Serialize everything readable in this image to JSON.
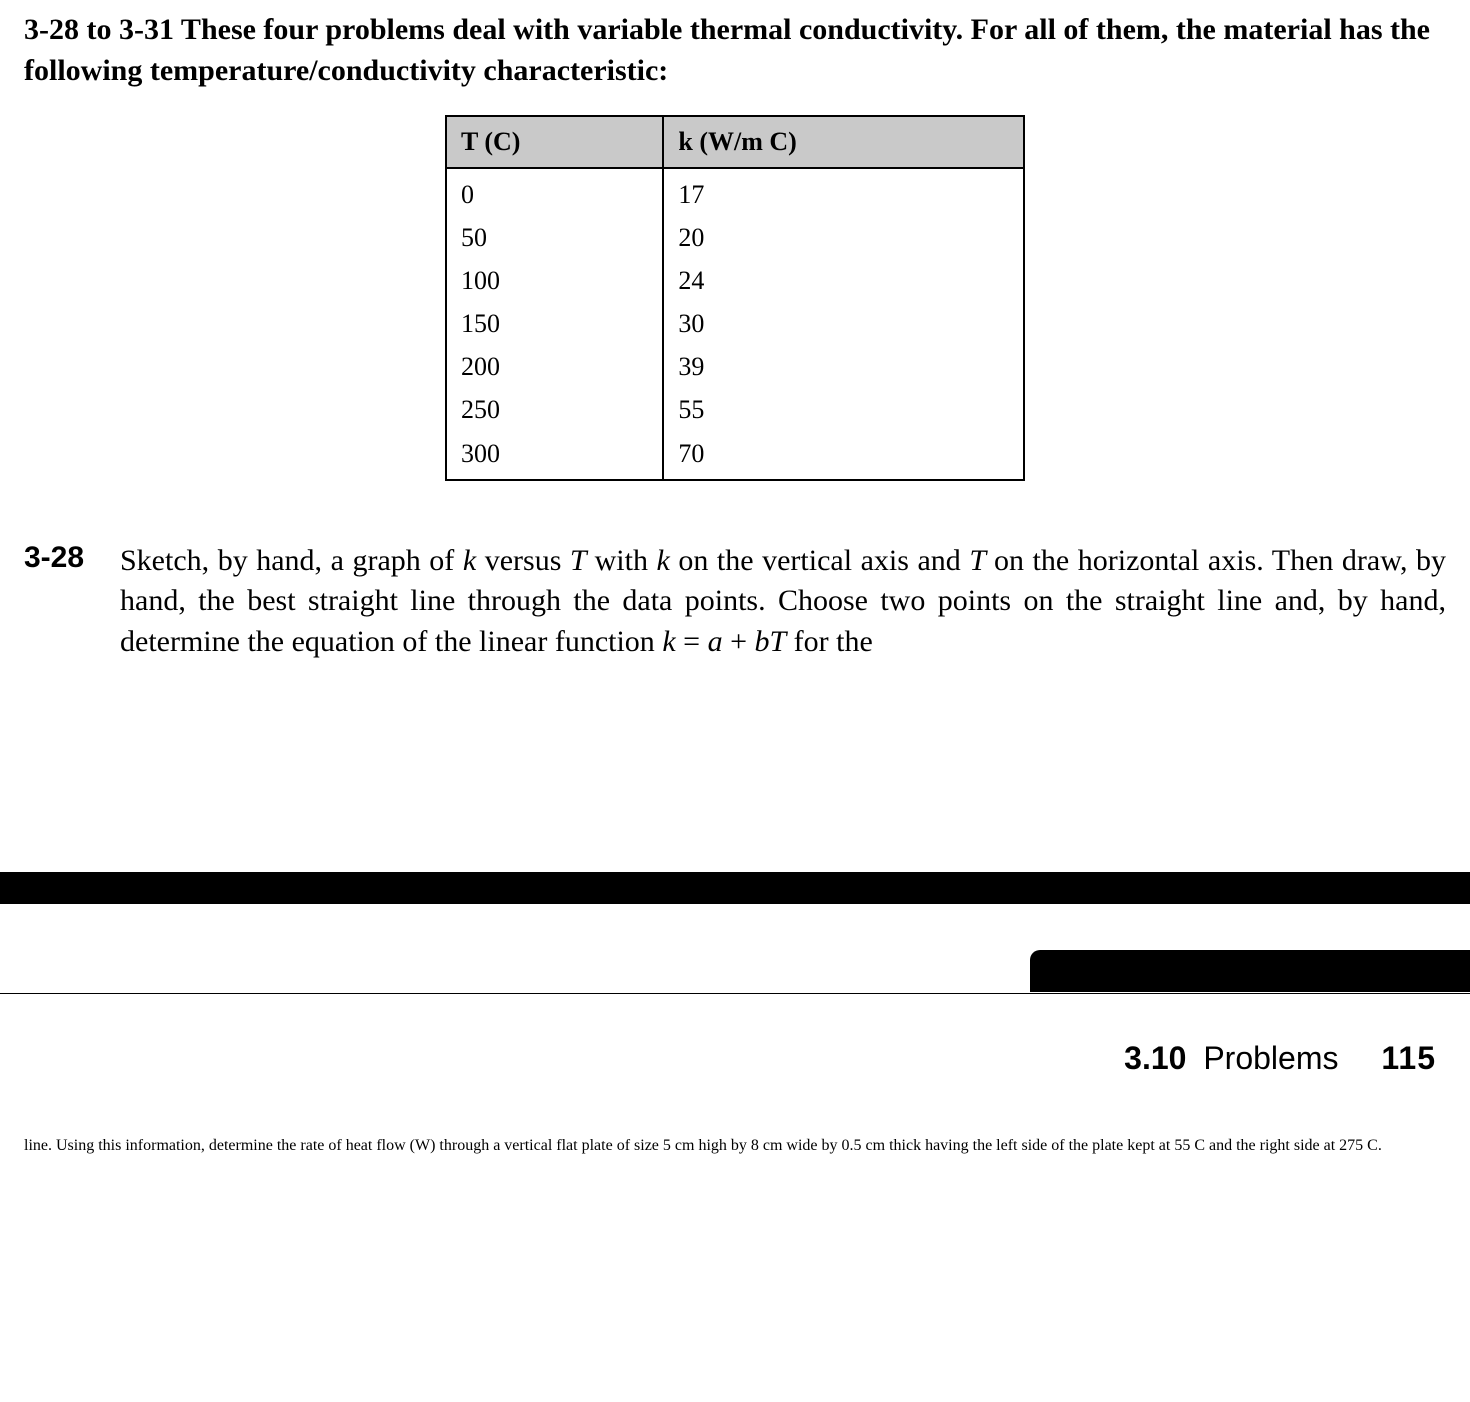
{
  "intro": "3-28 to 3-31 These four problems deal with variable thermal conductivity. For all of them, the material has the following temperature/conductivity characteristic:",
  "table": {
    "headers": [
      "T (C)",
      "k (W/m C)"
    ],
    "rows": [
      [
        "0",
        "17"
      ],
      [
        "50",
        "20"
      ],
      [
        "100",
        "24"
      ],
      [
        "150",
        "30"
      ],
      [
        "200",
        "39"
      ],
      [
        "250",
        "55"
      ],
      [
        "300",
        "70"
      ]
    ]
  },
  "p328": {
    "num": "3-28",
    "text_before_k1": "Sketch, by hand, a graph of ",
    "k1": "k",
    "text_mid1": " versus ",
    "T1": "T ",
    "text_mid2": "with ",
    "k2": "k",
    "text_mid3": " on the vertical axis and ",
    "T2": "T ",
    "text_mid4": "on the horizontal axis. Then draw, by hand, the best straight line through the data points. Choose two points on the straight line and, by hand, determine the equation of the linear function ",
    "eq_k": "k",
    "eq_eq": " = ",
    "eq_a": "a",
    "eq_plus": " + ",
    "eq_b": "b",
    "eq_T": "T",
    "text_after": " for the"
  },
  "header": {
    "secnum": "3.10",
    "secname": "Problems",
    "pagenum": "115"
  },
  "cont": "line. Using this information, determine the rate of heat flow (W) through a vertical flat plate of size 5 cm high by 8 cm wide by 0.5 cm thick having the left side of the plate kept at 55 C and the right side at 275 C."
}
